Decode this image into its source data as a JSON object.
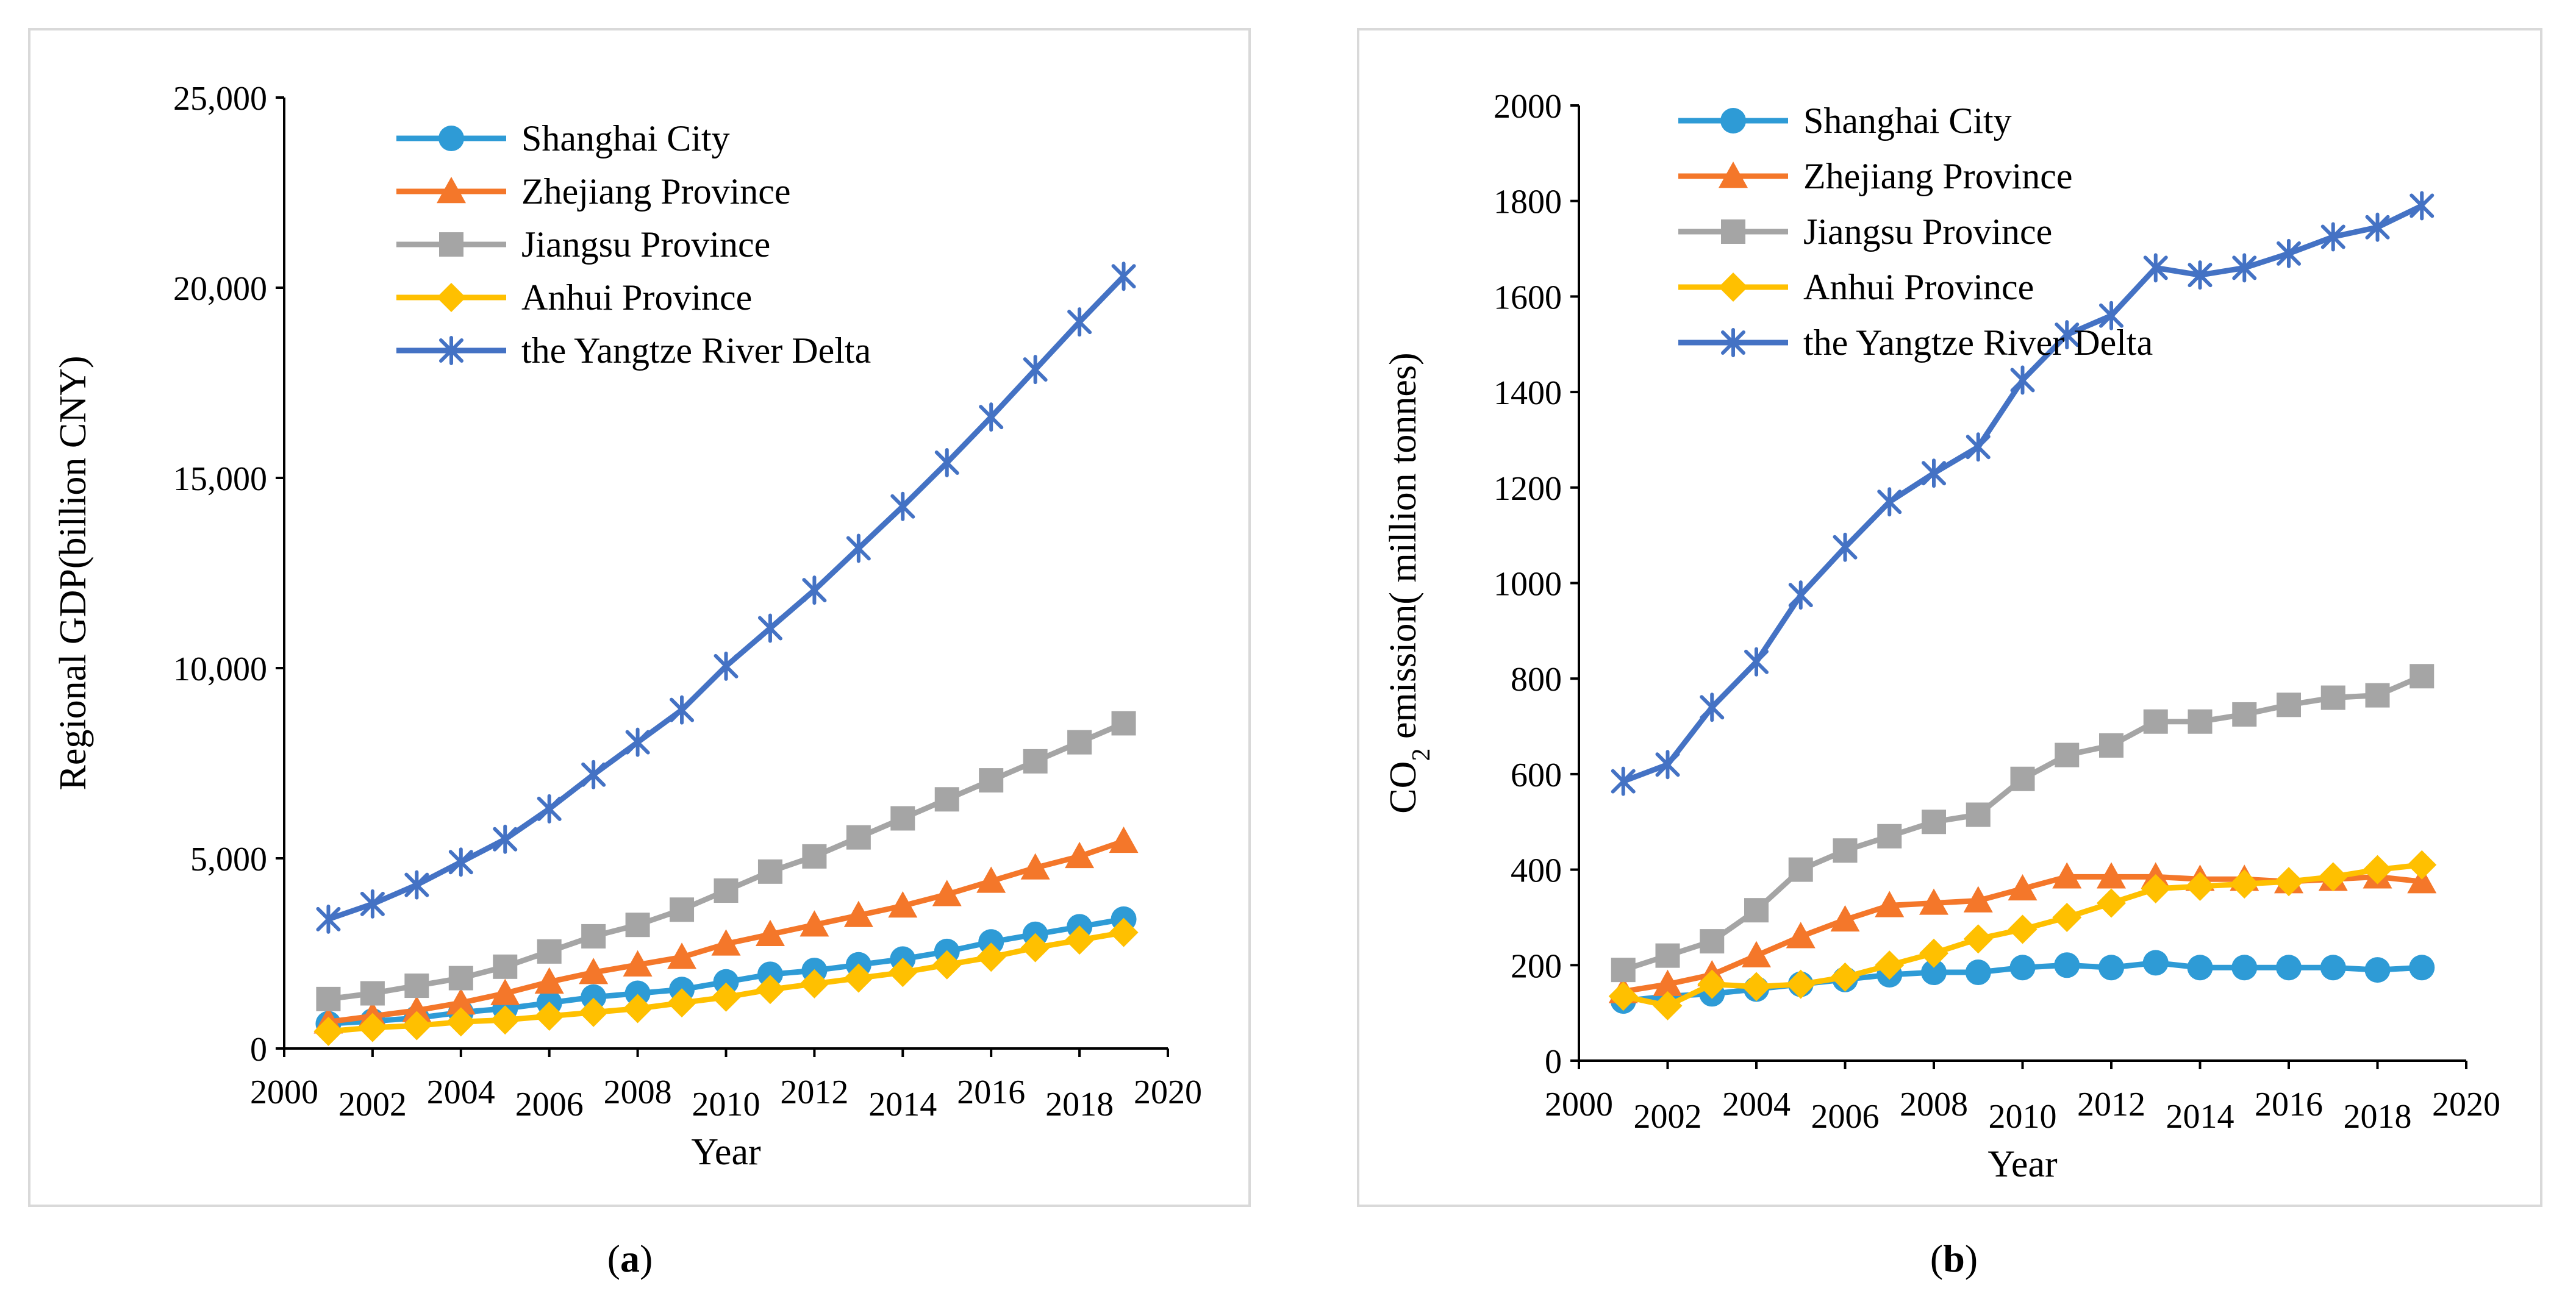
{
  "chart_data": [
    {
      "type": "line",
      "panel_label": "a",
      "title": "",
      "xlabel": "Year",
      "ylabel": "Regional GDP(billion CNY)",
      "xlim": [
        2000,
        2020
      ],
      "ylim": [
        0,
        25000
      ],
      "xticks": [
        2000,
        2002,
        2004,
        2006,
        2008,
        2010,
        2012,
        2014,
        2016,
        2018,
        2020
      ],
      "xtick_labels": [
        "2000",
        "2002",
        "2004",
        "2006",
        "2008",
        "2010",
        "2012",
        "2014",
        "2016",
        "2018",
        "2020"
      ],
      "yticks": [
        0,
        5000,
        10000,
        15000,
        20000,
        25000
      ],
      "ytick_labels": [
        "0",
        "5,000",
        "10,000",
        "15,000",
        "20,000",
        "25,000"
      ],
      "legend_position": "top-left",
      "x": [
        2001,
        2002,
        2003,
        2004,
        2005,
        2006,
        2007,
        2008,
        2009,
        2010,
        2011,
        2012,
        2013,
        2014,
        2015,
        2016,
        2017,
        2018,
        2019
      ],
      "series": [
        {
          "name": "Shanghai City",
          "color": "#2e9bd6",
          "marker": "circle",
          "values": [
            650,
            720,
            800,
            950,
            1050,
            1200,
            1350,
            1450,
            1550,
            1750,
            1950,
            2050,
            2200,
            2350,
            2550,
            2800,
            3000,
            3200,
            3400
          ]
        },
        {
          "name": "Zhejiang Province",
          "color": "#f4772a",
          "marker": "triangle",
          "values": [
            700,
            850,
            1000,
            1200,
            1450,
            1750,
            2000,
            2200,
            2400,
            2750,
            3000,
            3250,
            3500,
            3750,
            4050,
            4400,
            4750,
            5050,
            5450
          ]
        },
        {
          "name": "Jiangsu Province",
          "color": "#a5a5a5",
          "marker": "square",
          "values": [
            1300,
            1450,
            1650,
            1850,
            2150,
            2550,
            2950,
            3250,
            3650,
            4150,
            4650,
            5050,
            5550,
            6050,
            6550,
            7050,
            7550,
            8050,
            8550
          ]
        },
        {
          "name": "Anhui Province",
          "color": "#ffc000",
          "marker": "diamond",
          "values": [
            450,
            550,
            600,
            700,
            750,
            850,
            950,
            1050,
            1200,
            1350,
            1550,
            1700,
            1850,
            2000,
            2200,
            2400,
            2650,
            2850,
            3050
          ]
        },
        {
          "name": "the Yangtze River Delta",
          "color": "#4472c4",
          "marker": "star",
          "values": [
            3400,
            3800,
            4300,
            4900,
            5500,
            6300,
            7200,
            8050,
            8900,
            10050,
            11050,
            12050,
            13150,
            14250,
            15400,
            16600,
            17850,
            19100,
            20300
          ]
        }
      ]
    },
    {
      "type": "line",
      "panel_label": "b",
      "title": "",
      "xlabel": "Year",
      "ylabel": "CO2 emission( million tonnes)",
      "ylabel_main": "CO",
      "ylabel_sub": "2",
      "ylabel_rest": " emission( million tonnes)",
      "xlim": [
        2000,
        2020
      ],
      "ylim": [
        0,
        2000
      ],
      "xticks": [
        2000,
        2002,
        2004,
        2006,
        2008,
        2010,
        2012,
        2014,
        2016,
        2018,
        2020
      ],
      "xtick_labels": [
        "2000",
        "2002",
        "2004",
        "2006",
        "2008",
        "2010",
        "2012",
        "2014",
        "2016",
        "2018",
        "2020"
      ],
      "yticks": [
        0,
        200,
        400,
        600,
        800,
        1000,
        1200,
        1400,
        1600,
        1800,
        2000
      ],
      "ytick_labels": [
        "0",
        "200",
        "400",
        "600",
        "800",
        "1000",
        "1200",
        "1400",
        "1600",
        "1800",
        "2000"
      ],
      "legend_position": "top-left",
      "x": [
        2001,
        2002,
        2003,
        2004,
        2005,
        2006,
        2007,
        2008,
        2009,
        2010,
        2011,
        2012,
        2013,
        2014,
        2015,
        2016,
        2017,
        2018,
        2019
      ],
      "series": [
        {
          "name": "Shanghai City",
          "color": "#2e9bd6",
          "marker": "circle",
          "values": [
            125,
            135,
            140,
            150,
            160,
            170,
            180,
            185,
            185,
            195,
            200,
            195,
            205,
            195,
            195,
            195,
            195,
            190,
            195
          ]
        },
        {
          "name": "Zhejiang Province",
          "color": "#f4772a",
          "marker": "triangle",
          "values": [
            145,
            160,
            180,
            220,
            260,
            295,
            325,
            330,
            335,
            360,
            385,
            385,
            385,
            380,
            380,
            375,
            380,
            385,
            375
          ]
        },
        {
          "name": "Jiangsu Province",
          "color": "#a5a5a5",
          "marker": "square",
          "values": [
            190,
            220,
            250,
            315,
            400,
            440,
            470,
            500,
            515,
            590,
            640,
            660,
            710,
            710,
            725,
            745,
            760,
            765,
            805
          ]
        },
        {
          "name": "Anhui Province",
          "color": "#ffc000",
          "marker": "diamond",
          "values": [
            135,
            115,
            160,
            155,
            160,
            175,
            200,
            225,
            255,
            275,
            300,
            330,
            360,
            365,
            370,
            375,
            385,
            400,
            410
          ]
        },
        {
          "name": "the Yangtze River Delta",
          "color": "#4472c4",
          "marker": "star",
          "values": [
            585,
            620,
            740,
            835,
            975,
            1075,
            1170,
            1230,
            1285,
            1425,
            1520,
            1560,
            1660,
            1645,
            1660,
            1690,
            1725,
            1745,
            1790
          ]
        }
      ]
    }
  ],
  "captions": [
    "a",
    "b"
  ]
}
